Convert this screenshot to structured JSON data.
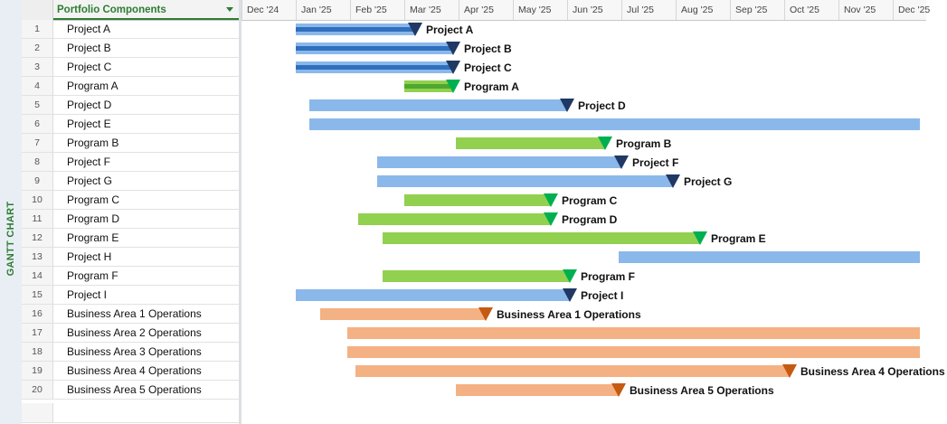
{
  "side_label": "GANTT CHART",
  "table": {
    "column_header": "Portfolio Components",
    "rows": [
      {
        "num": "1",
        "name": "Project A"
      },
      {
        "num": "2",
        "name": "Project B"
      },
      {
        "num": "3",
        "name": "Project C"
      },
      {
        "num": "4",
        "name": "Program A"
      },
      {
        "num": "5",
        "name": "Project D"
      },
      {
        "num": "6",
        "name": "Project E"
      },
      {
        "num": "7",
        "name": "Program B"
      },
      {
        "num": "8",
        "name": "Project F"
      },
      {
        "num": "9",
        "name": "Project G"
      },
      {
        "num": "10",
        "name": "Program C"
      },
      {
        "num": "11",
        "name": "Program D"
      },
      {
        "num": "12",
        "name": "Program E"
      },
      {
        "num": "13",
        "name": "Project H"
      },
      {
        "num": "14",
        "name": "Program F"
      },
      {
        "num": "15",
        "name": "Project I"
      },
      {
        "num": "16",
        "name": "Business Area 1 Operations"
      },
      {
        "num": "17",
        "name": "Business Area 2 Operations"
      },
      {
        "num": "18",
        "name": "Business Area 3 Operations"
      },
      {
        "num": "19",
        "name": "Business Area 4 Operations"
      },
      {
        "num": "20",
        "name": "Business Area 5 Operations"
      }
    ]
  },
  "timeline": {
    "months": [
      "Dec '24",
      "Jan '25",
      "Feb '25",
      "Mar '25",
      "Apr '25",
      "May '25",
      "Jun '25",
      "Jul '25",
      "Aug '25",
      "Sep '25",
      "Oct '25",
      "Nov '25",
      "Dec '25"
    ]
  },
  "colors": {
    "project": "#8ab8ea",
    "project_progress": "#2f6fbd",
    "program": "#92d050",
    "operations": "#f4b183",
    "project_marker": "#1f3864",
    "program_marker": "#00b050",
    "operations_marker": "#c55a11"
  },
  "gantt": [
    {
      "type": "project",
      "start": 1.0,
      "end": 3.2,
      "progress": 1.0,
      "label": "Project A",
      "milestone": true
    },
    {
      "type": "project",
      "start": 1.0,
      "end": 3.9,
      "progress": 1.0,
      "label": "Project B",
      "milestone": true
    },
    {
      "type": "project",
      "start": 1.0,
      "end": 3.9,
      "progress": 1.0,
      "label": "Project C",
      "milestone": true
    },
    {
      "type": "program",
      "start": 3.0,
      "end": 3.9,
      "progress": 1.0,
      "label": "Program A",
      "milestone": true
    },
    {
      "type": "project",
      "start": 1.25,
      "end": 6.0,
      "progress": 0,
      "label": "Project D",
      "milestone": true
    },
    {
      "type": "project",
      "start": 1.25,
      "end": 12.5,
      "progress": 0,
      "label": "",
      "milestone": false
    },
    {
      "type": "program",
      "start": 3.95,
      "end": 6.7,
      "progress": 0,
      "label": "Program B",
      "milestone": true
    },
    {
      "type": "project",
      "start": 2.5,
      "end": 7.0,
      "progress": 0,
      "label": "Project F",
      "milestone": true
    },
    {
      "type": "project",
      "start": 2.5,
      "end": 7.95,
      "progress": 0,
      "label": "Project G",
      "milestone": true
    },
    {
      "type": "program",
      "start": 3.0,
      "end": 5.7,
      "progress": 0,
      "label": "Program C",
      "milestone": true
    },
    {
      "type": "program",
      "start": 2.15,
      "end": 5.7,
      "progress": 0,
      "label": "Program D",
      "milestone": true
    },
    {
      "type": "program",
      "start": 2.6,
      "end": 8.45,
      "progress": 0,
      "label": "Program E",
      "milestone": true
    },
    {
      "type": "project",
      "start": 6.95,
      "end": 12.5,
      "progress": 0,
      "label": "",
      "milestone": false
    },
    {
      "type": "program",
      "start": 2.6,
      "end": 6.05,
      "progress": 0,
      "label": "Program F",
      "milestone": true
    },
    {
      "type": "project",
      "start": 1.0,
      "end": 6.05,
      "progress": 0,
      "label": "Project I",
      "milestone": true
    },
    {
      "type": "operations",
      "start": 1.45,
      "end": 4.5,
      "progress": 0,
      "label": "Business Area 1 Operations",
      "milestone": true
    },
    {
      "type": "operations",
      "start": 1.95,
      "end": 12.5,
      "progress": 0,
      "label": "",
      "milestone": false
    },
    {
      "type": "operations",
      "start": 1.95,
      "end": 12.5,
      "progress": 0,
      "label": "",
      "milestone": false
    },
    {
      "type": "operations",
      "start": 2.1,
      "end": 10.1,
      "progress": 0,
      "label": "Business Area 4 Operations",
      "milestone": true
    },
    {
      "type": "operations",
      "start": 3.95,
      "end": 6.95,
      "progress": 0,
      "label": "Business Area 5 Operations",
      "milestone": true
    }
  ]
}
